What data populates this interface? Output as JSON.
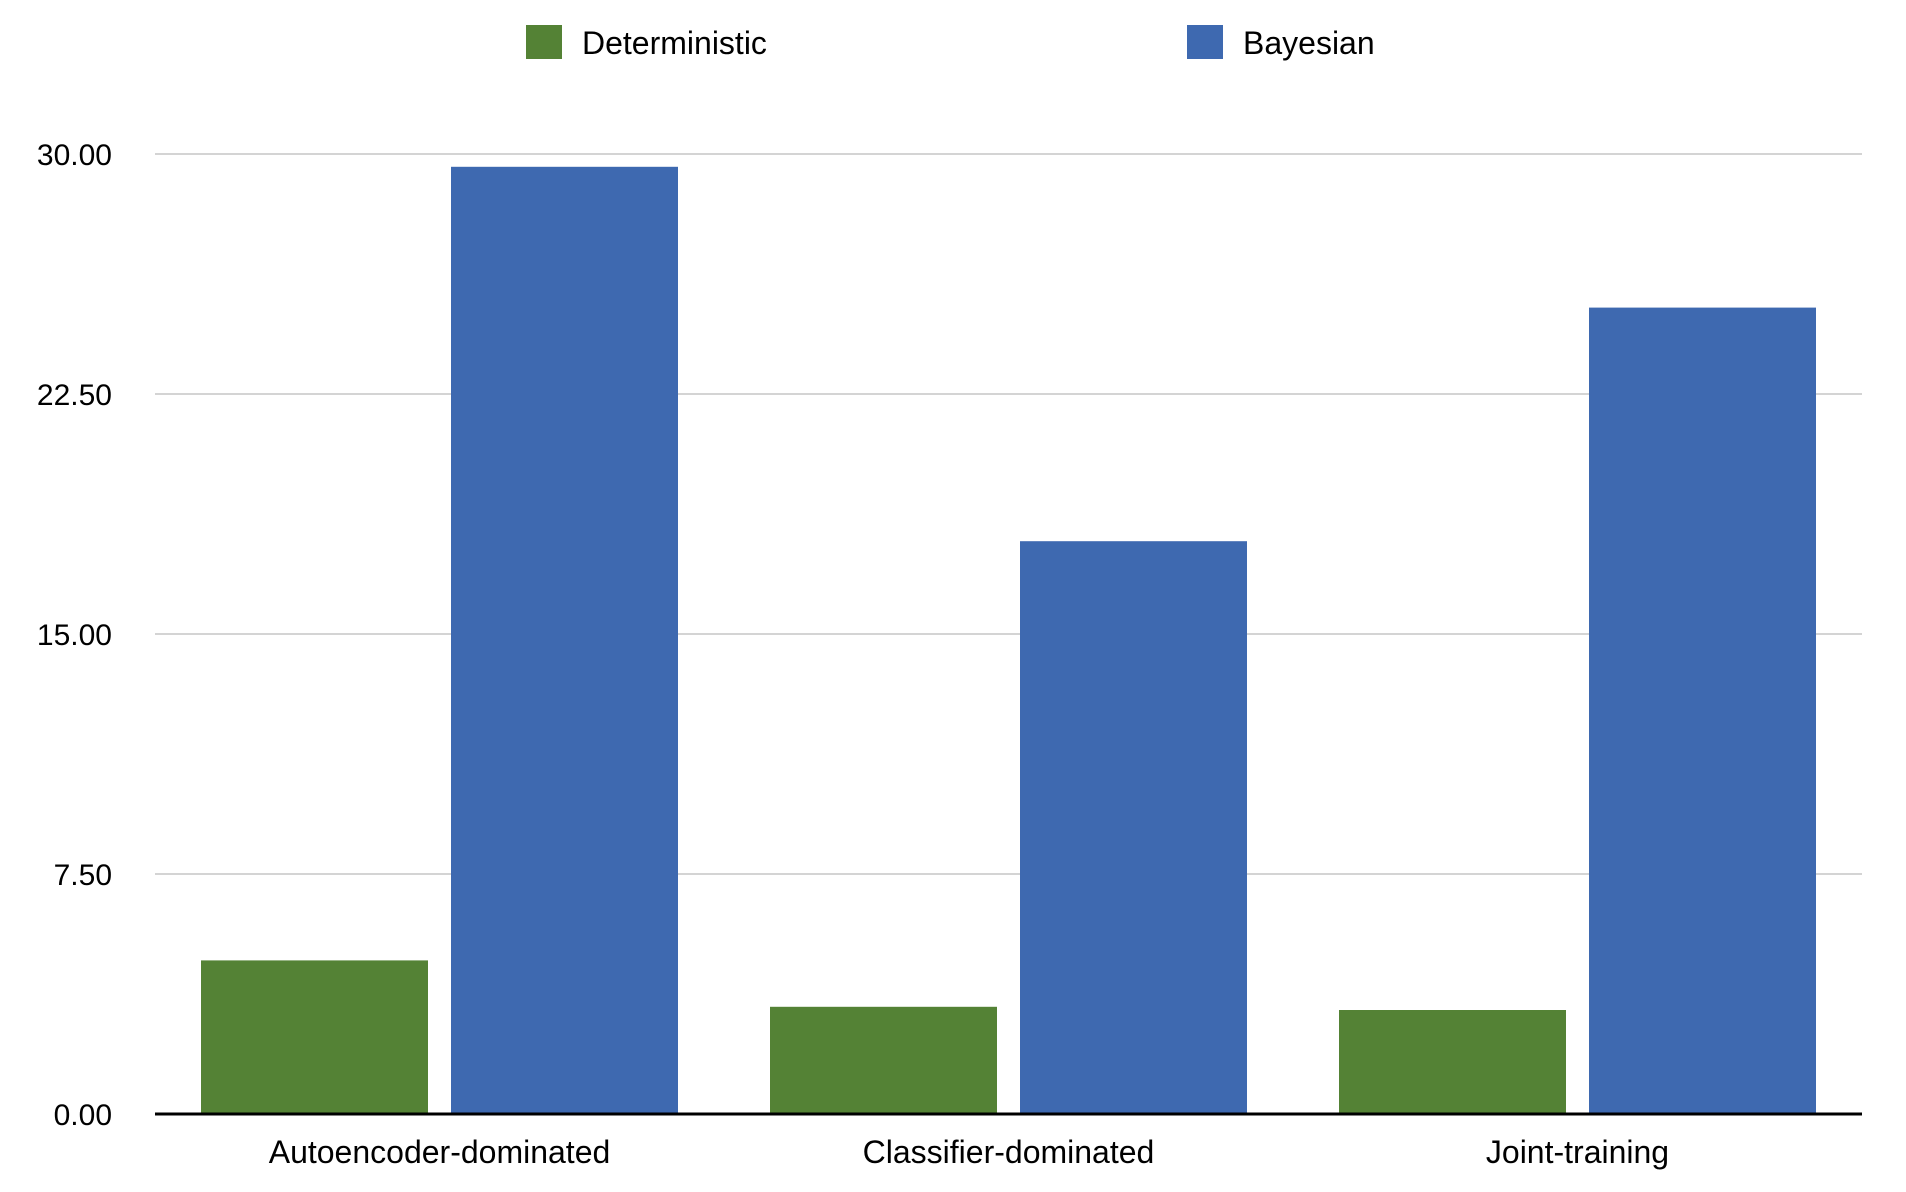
{
  "chart_data": {
    "type": "bar",
    "title": "",
    "xlabel": "",
    "ylabel": "",
    "categories": [
      "Autoencoder-dominated",
      "Classifier-dominated",
      "Joint-training"
    ],
    "series": [
      {
        "name": "Deterministic",
        "color": "#548235",
        "values": [
          4.8,
          3.35,
          3.25
        ]
      },
      {
        "name": "Bayesian",
        "color": "#3e69b0",
        "values": [
          29.6,
          17.9,
          25.2
        ]
      }
    ],
    "ylim": [
      0,
      30
    ],
    "yticks": [
      "0.00",
      "7.50",
      "15.00",
      "22.50",
      "30.00"
    ],
    "grid": true,
    "legend_position": "top-center"
  }
}
